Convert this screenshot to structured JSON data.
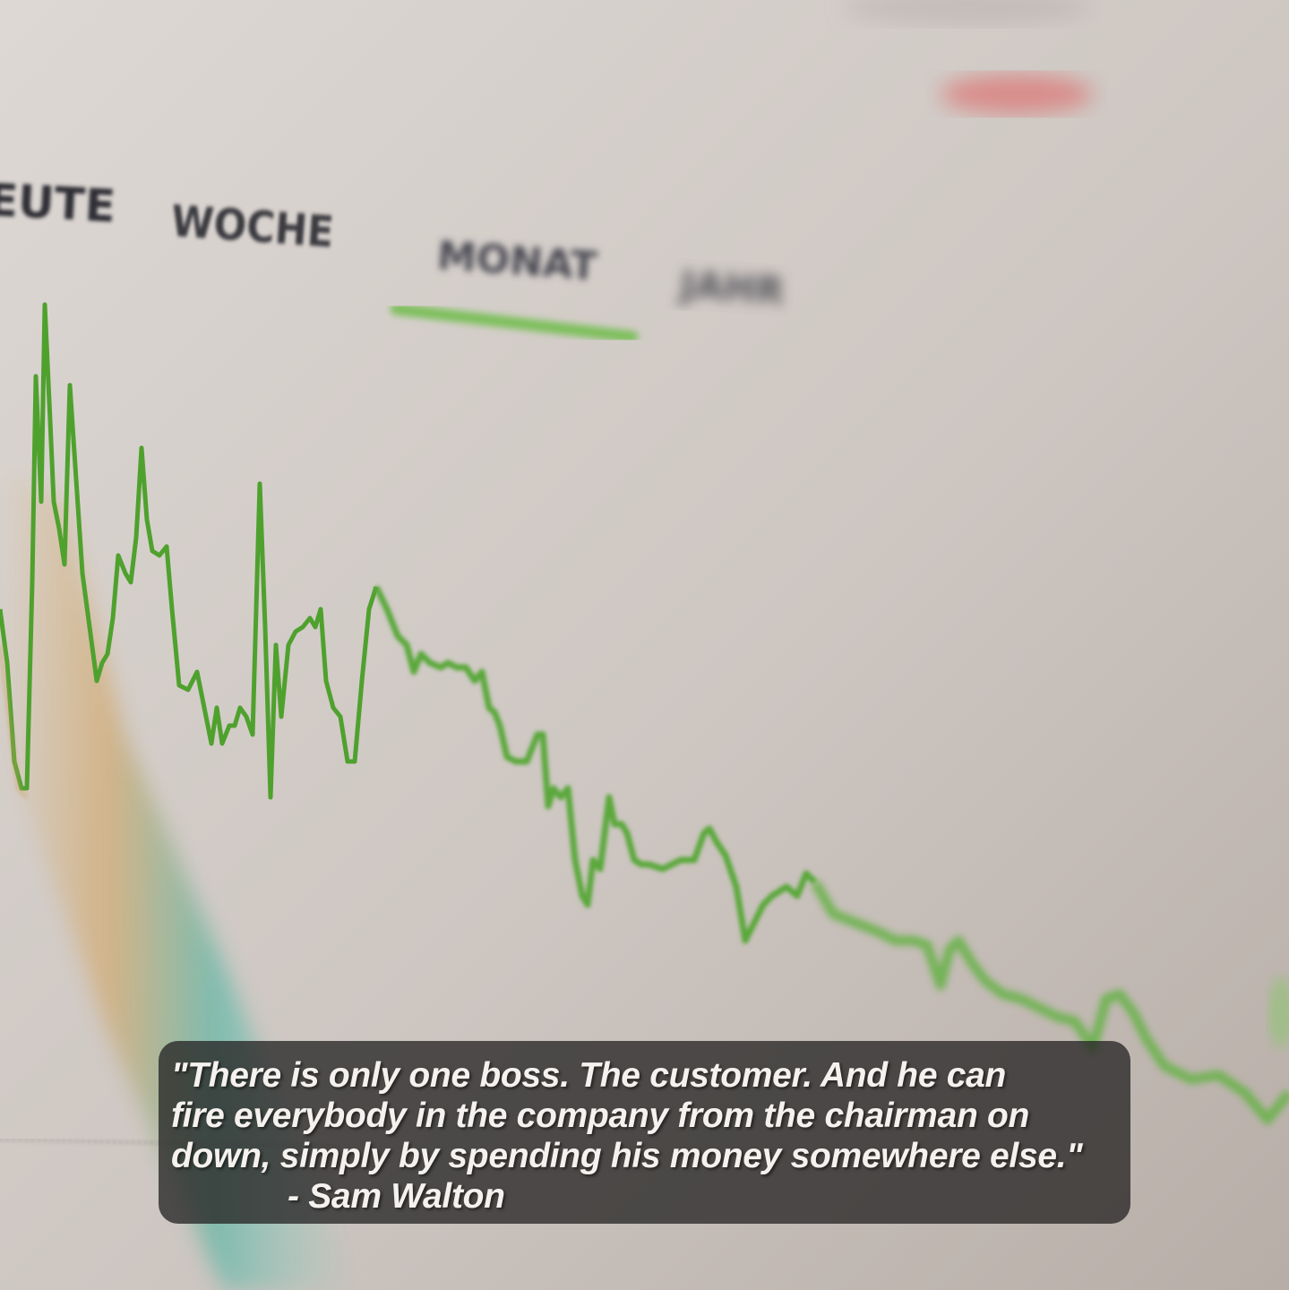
{
  "photo": {
    "tabs": [
      {
        "label": "EUTE"
      },
      {
        "label": "WOCHE"
      },
      {
        "label": "MONAT"
      },
      {
        "label": "JAHR"
      }
    ],
    "active_tab": "MONAT",
    "colors": {
      "background_light": "#d9d4d0",
      "background_dark": "#b9b0ab",
      "line_green": "#5aa83a",
      "accent_underline": "#7bbf5a",
      "top_red_text": "#e05a5a",
      "rainbow_teal": "#5fb7a6",
      "rainbow_orange": "#d3a86b"
    }
  },
  "quote": {
    "lines": [
      "\"There is only one boss. The customer. And he can",
      "fire everybody in the company from the chairman on",
      "down, simply by spending his money somewhere else.\""
    ],
    "author": "- Sam Walton"
  }
}
